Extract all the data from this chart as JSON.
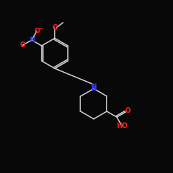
{
  "bg_color": "#080808",
  "bond_color": "#cccccc",
  "bond_width": 1.2,
  "N_color": "#3333ff",
  "O_color": "#ff2020",
  "C_color": "#cccccc",
  "font_size": 6.5,
  "fig_size": [
    2.5,
    2.5
  ],
  "dpi": 100,
  "xlim": [
    -1,
    11
  ],
  "ylim": [
    -1,
    11
  ]
}
